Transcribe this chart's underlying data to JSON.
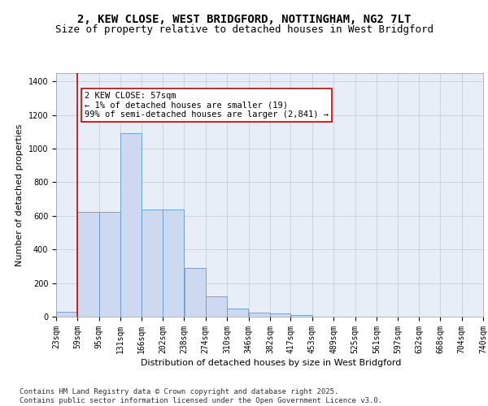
{
  "title_line1": "2, KEW CLOSE, WEST BRIDGFORD, NOTTINGHAM, NG2 7LT",
  "title_line2": "Size of property relative to detached houses in West Bridgford",
  "xlabel": "Distribution of detached houses by size in West Bridgford",
  "ylabel": "Number of detached properties",
  "footnote": "Contains HM Land Registry data © Crown copyright and database right 2025.\nContains public sector information licensed under the Open Government Licence v3.0.",
  "bin_labels": [
    "23sqm",
    "59sqm",
    "95sqm",
    "131sqm",
    "166sqm",
    "202sqm",
    "238sqm",
    "274sqm",
    "310sqm",
    "346sqm",
    "382sqm",
    "417sqm",
    "453sqm",
    "489sqm",
    "525sqm",
    "561sqm",
    "597sqm",
    "632sqm",
    "668sqm",
    "704sqm",
    "740sqm"
  ],
  "bar_values": [
    30,
    625,
    625,
    1090,
    640,
    640,
    290,
    120,
    48,
    25,
    20,
    10,
    0,
    0,
    0,
    0,
    0,
    0,
    0,
    0
  ],
  "bar_color": "#ccd9f0",
  "bar_edge_color": "#6699cc",
  "annotation_text": "2 KEW CLOSE: 57sqm\n← 1% of detached houses are smaller (19)\n99% of semi-detached houses are larger (2,841) →",
  "vline_x_label": "59sqm",
  "vline_color": "#cc0000",
  "annotation_box_edge_color": "#cc0000",
  "ylim": [
    0,
    1450
  ],
  "yticks": [
    0,
    200,
    400,
    600,
    800,
    1000,
    1200,
    1400
  ],
  "background_color": "#e8eef8",
  "grid_color": "#c0c8d8",
  "title_fontsize": 10,
  "subtitle_fontsize": 9,
  "axis_label_fontsize": 8,
  "tick_fontsize": 7,
  "annotation_fontsize": 7.5,
  "footnote_fontsize": 6.5
}
